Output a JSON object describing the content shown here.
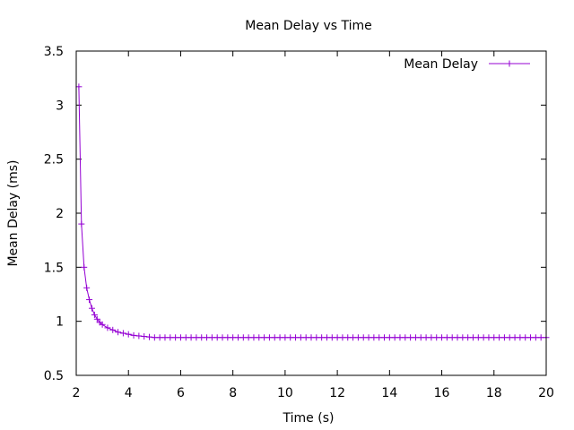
{
  "chart_data": {
    "type": "line",
    "title": "Mean Delay vs Time",
    "xlabel": "Time (s)",
    "ylabel": "Mean Delay (ms)",
    "xlim": [
      2,
      20
    ],
    "ylim": [
      0.5,
      3.5
    ],
    "xticks": [
      2,
      4,
      6,
      8,
      10,
      12,
      14,
      16,
      18,
      20
    ],
    "xtick_labels": [
      "2",
      "4",
      "6",
      "8",
      "10",
      "12",
      "14",
      "16",
      "18",
      "20"
    ],
    "yticks": [
      0.5,
      1,
      1.5,
      2,
      2.5,
      3,
      3.5
    ],
    "ytick_labels": [
      "0.5",
      "1",
      "1.5",
      "2",
      "2.5",
      "3",
      "3.5"
    ],
    "grid": false,
    "legend_position": "top-right",
    "series": [
      {
        "name": "Mean Delay",
        "color": "#9400d3",
        "marker": "plus",
        "x": [
          2.1,
          2.2,
          2.3,
          2.4,
          2.5,
          2.6,
          2.7,
          2.8,
          2.9,
          3.0,
          3.2,
          3.4,
          3.6,
          3.8,
          4.0,
          4.2,
          4.4,
          4.6,
          4.8,
          5.0,
          5.2,
          5.4,
          5.6,
          5.8,
          6.0,
          6.2,
          6.4,
          6.6,
          6.8,
          7.0,
          7.2,
          7.4,
          7.6,
          7.8,
          8.0,
          8.2,
          8.4,
          8.6,
          8.8,
          9.0,
          9.2,
          9.4,
          9.6,
          9.8,
          10.0,
          10.2,
          10.4,
          10.6,
          10.8,
          11.0,
          11.2,
          11.4,
          11.6,
          11.8,
          12.0,
          12.2,
          12.4,
          12.6,
          12.8,
          13.0,
          13.2,
          13.4,
          13.6,
          13.8,
          14.0,
          14.2,
          14.4,
          14.6,
          14.8,
          15.0,
          15.2,
          15.4,
          15.6,
          15.8,
          16.0,
          16.2,
          16.4,
          16.6,
          16.8,
          17.0,
          17.2,
          17.4,
          17.6,
          17.8,
          18.0,
          18.2,
          18.4,
          18.6,
          18.8,
          19.0,
          19.2,
          19.4,
          19.6,
          19.8,
          20.0
        ],
        "y": [
          3.17,
          1.9,
          1.5,
          1.31,
          1.2,
          1.12,
          1.06,
          1.02,
          0.99,
          0.97,
          0.94,
          0.92,
          0.9,
          0.89,
          0.88,
          0.87,
          0.865,
          0.86,
          0.855,
          0.85,
          0.85,
          0.85,
          0.85,
          0.85,
          0.85,
          0.85,
          0.85,
          0.85,
          0.85,
          0.85,
          0.85,
          0.85,
          0.85,
          0.85,
          0.85,
          0.85,
          0.85,
          0.85,
          0.85,
          0.85,
          0.85,
          0.85,
          0.85,
          0.85,
          0.85,
          0.85,
          0.85,
          0.85,
          0.85,
          0.85,
          0.85,
          0.85,
          0.85,
          0.85,
          0.85,
          0.85,
          0.85,
          0.85,
          0.85,
          0.85,
          0.85,
          0.85,
          0.85,
          0.85,
          0.85,
          0.85,
          0.85,
          0.85,
          0.85,
          0.85,
          0.85,
          0.85,
          0.85,
          0.85,
          0.85,
          0.85,
          0.85,
          0.85,
          0.85,
          0.85,
          0.85,
          0.85,
          0.85,
          0.85,
          0.85,
          0.85,
          0.85,
          0.85,
          0.85,
          0.85,
          0.85,
          0.85,
          0.85,
          0.85,
          0.85
        ]
      }
    ]
  }
}
